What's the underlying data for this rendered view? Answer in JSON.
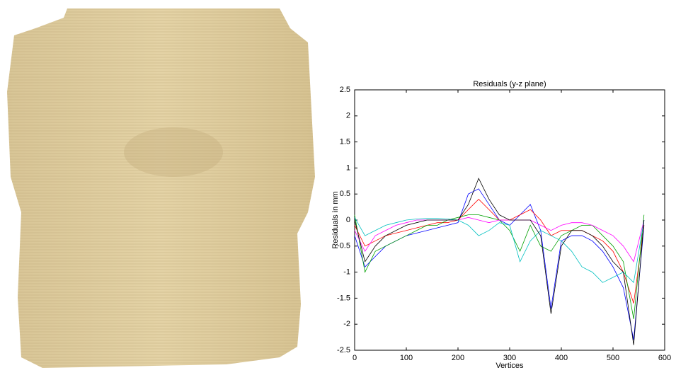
{
  "chart_data": {
    "type": "line",
    "title": "Residuals (y-z plane)",
    "xlabel": "Vertices",
    "ylabel": "Residuals in mm",
    "x": [
      0,
      20,
      40,
      60,
      80,
      100,
      120,
      140,
      160,
      180,
      200,
      220,
      240,
      260,
      280,
      300,
      320,
      340,
      360,
      380,
      400,
      420,
      440,
      460,
      480,
      500,
      520,
      540,
      560
    ],
    "series": [
      {
        "color": "#0000ff",
        "values": [
          -0.3,
          -0.9,
          -0.7,
          -0.5,
          -0.4,
          -0.3,
          -0.25,
          -0.2,
          -0.15,
          -0.1,
          -0.05,
          0.5,
          0.6,
          0.3,
          0,
          -0.1,
          0.1,
          0.3,
          -0.2,
          -1.7,
          -0.4,
          -0.3,
          -0.3,
          -0.4,
          -0.6,
          -0.9,
          -1.3,
          -2.3,
          -0.1
        ]
      },
      {
        "color": "#ff0000",
        "values": [
          -0.1,
          -0.5,
          -0.4,
          -0.3,
          -0.25,
          -0.2,
          -0.15,
          -0.1,
          -0.05,
          -0.05,
          0,
          0.2,
          0.4,
          0.2,
          0,
          0,
          0.1,
          0.2,
          0,
          -0.3,
          -0.2,
          -0.2,
          -0.2,
          -0.3,
          -0.4,
          -0.6,
          -1.0,
          -1.6,
          -0.1
        ]
      },
      {
        "color": "#00a000",
        "values": [
          0.1,
          -1.0,
          -0.6,
          -0.5,
          -0.4,
          -0.3,
          -0.2,
          -0.1,
          -0.1,
          0,
          0.05,
          0.1,
          0.1,
          0.05,
          0,
          -0.2,
          -0.6,
          -0.1,
          -0.5,
          -0.6,
          -0.3,
          -0.2,
          -0.1,
          -0.1,
          -0.3,
          -0.5,
          -0.8,
          -1.9,
          0.1
        ]
      },
      {
        "color": "#ff00ff",
        "values": [
          -0.2,
          -0.6,
          -0.3,
          -0.2,
          -0.1,
          -0.05,
          0,
          0,
          0,
          0,
          0,
          0.05,
          0,
          -0.05,
          0,
          0,
          0,
          0,
          -0.1,
          -0.2,
          -0.1,
          -0.05,
          -0.05,
          -0.1,
          -0.2,
          -0.3,
          -0.5,
          -0.8,
          0
        ]
      },
      {
        "color": "#00c0c0",
        "values": [
          0.05,
          -0.3,
          -0.2,
          -0.1,
          -0.05,
          0,
          0.02,
          0.03,
          0.03,
          0.02,
          0,
          -0.1,
          -0.3,
          -0.2,
          -0.05,
          -0.1,
          -0.8,
          -0.4,
          -0.2,
          -0.3,
          -0.4,
          -0.6,
          -0.9,
          -1.0,
          -1.2,
          -1.1,
          -1.0,
          -1.2,
          0
        ]
      },
      {
        "color": "#000000",
        "values": [
          0,
          -0.8,
          -0.5,
          -0.3,
          -0.2,
          -0.1,
          -0.05,
          0,
          0,
          0,
          0,
          0.3,
          0.8,
          0.4,
          0.1,
          0,
          0,
          0,
          -0.3,
          -1.8,
          -0.5,
          -0.2,
          -0.2,
          -0.3,
          -0.5,
          -0.8,
          -1.0,
          -2.4,
          0
        ]
      }
    ],
    "xlim": [
      0,
      600
    ],
    "xticks": [
      0,
      100,
      200,
      300,
      400,
      500,
      600
    ],
    "ylim": [
      -2.5,
      2.5
    ],
    "yticks": [
      -2.5,
      -2,
      -1.5,
      -1,
      -0.5,
      0,
      0.5,
      1,
      1.5,
      2,
      2.5
    ]
  }
}
